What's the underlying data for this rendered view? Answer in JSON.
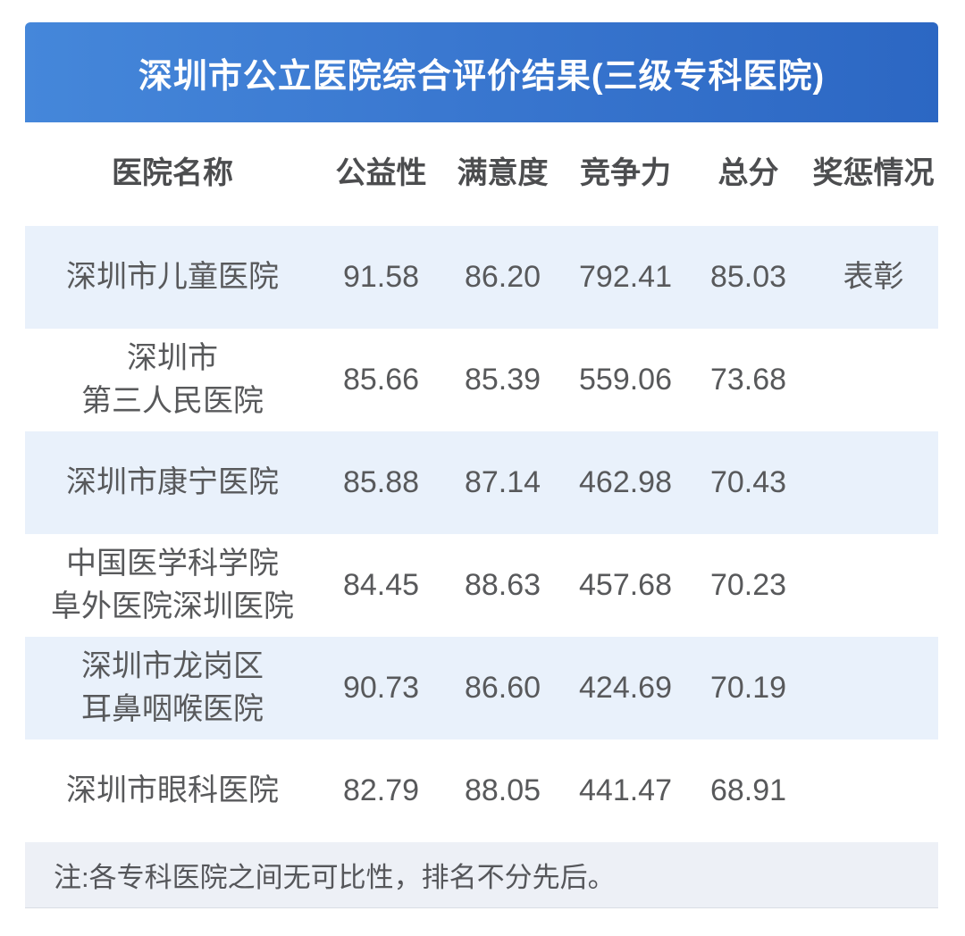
{
  "colors": {
    "header_gradient_left": "#4587da",
    "header_gradient_right": "#2c67c3",
    "alt_row_bg": "#e9f1fb",
    "plain_row_bg": "#ffffff",
    "footer_bg": "#edf0f6",
    "body_text": "#58595b",
    "title_text": "#ffffff"
  },
  "chart_data": {
    "type": "table",
    "title": "深圳市公立医院综合评价结果(三级专科医院)",
    "columns": [
      "医院名称",
      "公益性",
      "满意度",
      "竞争力",
      "总分",
      "奖惩情况"
    ],
    "rows": [
      [
        "深圳市儿童医院",
        "91.58",
        "86.20",
        "792.41",
        "85.03",
        "表彰"
      ],
      [
        "深圳市\n第三人民医院",
        "85.66",
        "85.39",
        "559.06",
        "73.68",
        ""
      ],
      [
        "深圳市康宁医院",
        "85.88",
        "87.14",
        "462.98",
        "70.43",
        ""
      ],
      [
        "中国医学科学院\n阜外医院深圳医院",
        "84.45",
        "88.63",
        "457.68",
        "70.23",
        ""
      ],
      [
        "深圳市龙岗区\n耳鼻咽喉医院",
        "90.73",
        "86.60",
        "424.69",
        "70.19",
        ""
      ],
      [
        "深圳市眼科医院",
        "82.79",
        "88.05",
        "441.47",
        "68.91",
        ""
      ]
    ],
    "note": "注:各专科医院之间无可比性，排名不分先后。"
  }
}
